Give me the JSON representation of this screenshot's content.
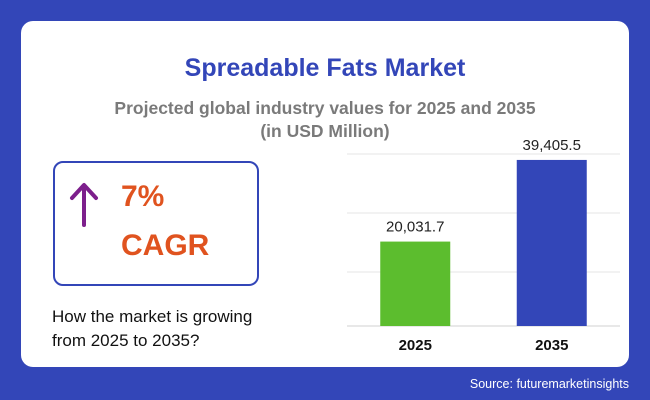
{
  "header": {
    "title": "Spreadable Fats Market",
    "subtitle_line1": "Projected global industry values for 2025 and 2035",
    "subtitle_line2": "(in USD Million)"
  },
  "cagr": {
    "value": "7%",
    "label": "CAGR",
    "arrow_icon": "arrow-up-icon"
  },
  "question": {
    "line1": "How the market is growing",
    "line2": "from 2025 to 2035?"
  },
  "source": "Source: futuremarketinsights",
  "colors": {
    "background": "#3346b8",
    "title": "#3346b8",
    "subtitle": "#7a7a7a",
    "accent": "#e0531f",
    "arrow": "#7d1f8c"
  },
  "chart_data": {
    "type": "bar",
    "categories": [
      "2025",
      "2035"
    ],
    "values": [
      20031.7,
      39405.5
    ],
    "value_labels": [
      "20,031.7",
      "39,405.5"
    ],
    "bar_colors": [
      "#5cbd2e",
      "#3346b8"
    ],
    "ylim": [
      0,
      42000
    ],
    "grid": true,
    "legend": "none"
  }
}
